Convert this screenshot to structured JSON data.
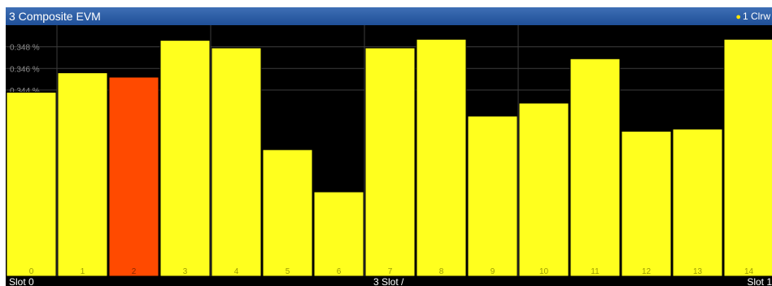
{
  "window": {
    "title": "3 Composite EVM",
    "trace_indicator": "1 Clrw"
  },
  "colors": {
    "bar": "#ffff1e",
    "highlight": "#ff4a00",
    "grid": "#3c3c3c",
    "background": "#000000"
  },
  "chart_data": {
    "type": "bar",
    "title": "3 Composite EVM",
    "categories": [
      "0",
      "1",
      "2",
      "3",
      "4",
      "5",
      "6",
      "7",
      "8",
      "9",
      "10",
      "11",
      "12",
      "13",
      "14"
    ],
    "values": [
      0.3438,
      0.3456,
      0.3452,
      0.3486,
      0.3479,
      0.3385,
      0.3346,
      0.3479,
      0.3487,
      0.3416,
      0.3428,
      0.3469,
      0.3402,
      0.3404,
      0.3487
    ],
    "highlighted_index": 2,
    "y_tick_labels": [
      "0.348 %",
      "0.346 %",
      "0.344 %"
    ],
    "y_ticks": [
      0.348,
      0.346,
      0.344
    ],
    "ylim": [
      0.3268,
      0.35
    ],
    "grid": true
  },
  "footer": {
    "left": "Slot 0",
    "center": "3 Slot /",
    "right": "Slot 1"
  }
}
